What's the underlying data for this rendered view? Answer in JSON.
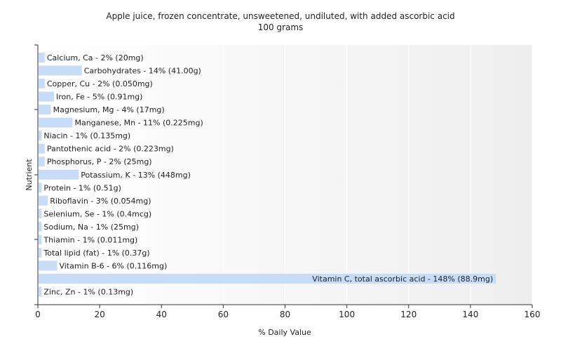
{
  "chart_data": {
    "type": "bar",
    "orientation": "horizontal",
    "title": "Apple juice, frozen concentrate, unsweetened, undiluted, with added ascorbic acid",
    "subtitle": "100 grams",
    "xlabel": "% Daily Value",
    "ylabel": "Nutrient",
    "xlim": [
      0,
      160
    ],
    "xticks": [
      "0",
      "20",
      "40",
      "60",
      "80",
      "100",
      "120",
      "140",
      "160"
    ],
    "grid": true,
    "bar_color": "#c6dcf7",
    "categories": [
      "Calcium, Ca",
      "Carbohydrates",
      "Copper, Cu",
      "Iron, Fe",
      "Magnesium, Mg",
      "Manganese, Mn",
      "Niacin",
      "Pantothenic acid",
      "Phosphorus, P",
      "Potassium, K",
      "Protein",
      "Riboflavin",
      "Selenium, Se",
      "Sodium, Na",
      "Thiamin",
      "Total lipid (fat)",
      "Vitamin B-6",
      "Vitamin C, total ascorbic acid",
      "Zinc, Zn"
    ],
    "values": [
      2,
      14,
      2,
      5,
      4,
      11,
      1,
      2,
      2,
      13,
      1,
      3,
      1,
      1,
      1,
      1,
      6,
      148,
      1
    ],
    "labels": [
      "Calcium, Ca - 2% (20mg)",
      "Carbohydrates - 14% (41.00g)",
      "Copper, Cu - 2% (0.050mg)",
      "Iron, Fe - 5% (0.91mg)",
      "Magnesium, Mg - 4% (17mg)",
      "Manganese, Mn - 11% (0.225mg)",
      "Niacin - 1% (0.135mg)",
      "Pantothenic acid - 2% (0.223mg)",
      "Phosphorus, P - 2% (25mg)",
      "Potassium, K - 13% (448mg)",
      "Protein - 1% (0.51g)",
      "Riboflavin - 3% (0.054mg)",
      "Selenium, Se - 1% (0.4mcg)",
      "Sodium, Na - 1% (25mg)",
      "Thiamin - 1% (0.011mg)",
      "Total lipid (fat) - 1% (0.37g)",
      "Vitamin B-6 - 6% (0.116mg)",
      "Vitamin C, total ascorbic acid - 148% (88.9mg)",
      "Zinc, Zn - 1% (0.13mg)"
    ]
  }
}
